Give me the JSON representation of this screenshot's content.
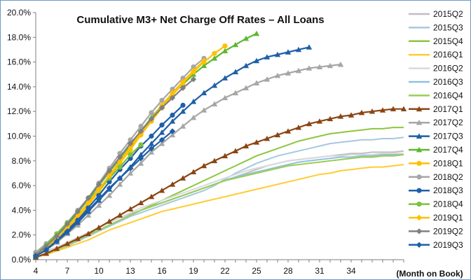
{
  "chart_data": {
    "type": "line",
    "title": "Cumulative M3+ Net Charge Off Rates – All Loans",
    "xlabel": "(Month on Book)",
    "ylabel": "",
    "xlim": [
      4,
      39
    ],
    "ylim": [
      0,
      0.2
    ],
    "x_ticks": [
      4,
      7,
      10,
      13,
      16,
      19,
      22,
      25,
      28,
      31,
      34
    ],
    "y_ticks": [
      {
        "v": 0.0,
        "label": "0.0%"
      },
      {
        "v": 0.02,
        "label": "2.0%"
      },
      {
        "v": 0.04,
        "label": "4.0%"
      },
      {
        "v": 0.06,
        "label": "6.0%"
      },
      {
        "v": 0.08,
        "label": "8.0%"
      },
      {
        "v": 0.1,
        "label": "10.0%"
      },
      {
        "v": 0.12,
        "label": "12.0%"
      },
      {
        "v": 0.14,
        "label": "14.0%"
      },
      {
        "v": 0.16,
        "label": "16.0%"
      },
      {
        "v": 0.18,
        "label": "18.0%"
      },
      {
        "v": 0.2,
        "label": "20.0%"
      }
    ],
    "grid": false,
    "legend_position": "right",
    "series": [
      {
        "name": "2015Q2",
        "color": "#bfbfbf",
        "marker": "none",
        "x_start": 4,
        "values": [
          0.003,
          0.007,
          0.01,
          0.014,
          0.018,
          0.022,
          0.026,
          0.03,
          0.034,
          0.037,
          0.04,
          0.043,
          0.046,
          0.049,
          0.052,
          0.055,
          0.058,
          0.061,
          0.064,
          0.067,
          0.07,
          0.073,
          0.076,
          0.078,
          0.08,
          0.081,
          0.082,
          0.083,
          0.084,
          0.085,
          0.086,
          0.086,
          0.087,
          0.087,
          0.087,
          0.088
        ]
      },
      {
        "name": "2015Q3",
        "color": "#a6c8e0",
        "marker": "none",
        "x_start": 4,
        "values": [
          0.002,
          0.005,
          0.008,
          0.011,
          0.015,
          0.019,
          0.023,
          0.027,
          0.031,
          0.035,
          0.038,
          0.041,
          0.044,
          0.047,
          0.05,
          0.053,
          0.056,
          0.06,
          0.065,
          0.07,
          0.074,
          0.078,
          0.081,
          0.084,
          0.086,
          0.088,
          0.09,
          0.092,
          0.094,
          0.095,
          0.096,
          0.097,
          0.097,
          0.098,
          0.098,
          0.099
        ]
      },
      {
        "name": "2015Q4",
        "color": "#8cc63f",
        "marker": "none",
        "x_start": 4,
        "values": [
          0.002,
          0.005,
          0.008,
          0.012,
          0.016,
          0.02,
          0.024,
          0.028,
          0.032,
          0.036,
          0.04,
          0.044,
          0.048,
          0.052,
          0.056,
          0.06,
          0.064,
          0.068,
          0.072,
          0.076,
          0.08,
          0.084,
          0.087,
          0.09,
          0.093,
          0.096,
          0.098,
          0.1,
          0.102,
          0.103,
          0.104,
          0.105,
          0.106,
          0.106,
          0.107,
          0.107
        ]
      },
      {
        "name": "2016Q1",
        "color": "#ffcc33",
        "marker": "none",
        "x_start": 4,
        "values": [
          0.002,
          0.004,
          0.007,
          0.01,
          0.013,
          0.016,
          0.02,
          0.024,
          0.027,
          0.03,
          0.033,
          0.036,
          0.039,
          0.041,
          0.043,
          0.045,
          0.047,
          0.049,
          0.051,
          0.053,
          0.055,
          0.057,
          0.059,
          0.061,
          0.063,
          0.065,
          0.067,
          0.069,
          0.07,
          0.072,
          0.073,
          0.074,
          0.075,
          0.075,
          0.076,
          0.077
        ]
      },
      {
        "name": "2016Q2",
        "color": "#d9d9d9",
        "marker": "none",
        "x_start": 4,
        "values": [
          0.003,
          0.006,
          0.01,
          0.014,
          0.018,
          0.022,
          0.026,
          0.03,
          0.034,
          0.038,
          0.042,
          0.045,
          0.048,
          0.051,
          0.054,
          0.057,
          0.06,
          0.063,
          0.066,
          0.069,
          0.072,
          0.074,
          0.076,
          0.078,
          0.08,
          0.081,
          0.082,
          0.083,
          0.084,
          0.084,
          0.085,
          0.085,
          0.085,
          0.086,
          0.086,
          0.086
        ]
      },
      {
        "name": "2016Q3",
        "color": "#92c0e0",
        "marker": "none",
        "x_start": 4,
        "values": [
          0.002,
          0.005,
          0.008,
          0.012,
          0.016,
          0.02,
          0.024,
          0.028,
          0.032,
          0.036,
          0.04,
          0.043,
          0.046,
          0.049,
          0.052,
          0.055,
          0.058,
          0.061,
          0.064,
          0.067,
          0.069,
          0.071,
          0.073,
          0.075,
          0.077,
          0.079,
          0.08,
          0.081,
          0.082,
          0.083,
          0.083,
          0.084,
          0.084,
          0.085,
          0.085,
          0.085
        ]
      },
      {
        "name": "2016Q4",
        "color": "#9acd55",
        "marker": "none",
        "x_start": 4,
        "values": [
          0.002,
          0.005,
          0.008,
          0.012,
          0.016,
          0.02,
          0.024,
          0.028,
          0.032,
          0.036,
          0.04,
          0.043,
          0.046,
          0.049,
          0.052,
          0.055,
          0.058,
          0.061,
          0.064,
          0.066,
          0.068,
          0.07,
          0.072,
          0.074,
          0.076,
          0.077,
          0.078,
          0.079,
          0.08,
          0.081,
          0.082,
          0.083,
          0.083,
          0.084,
          0.084,
          0.085
        ]
      },
      {
        "name": "2017Q1",
        "color": "#8b4513",
        "marker": "triangle",
        "x_start": 4,
        "values": [
          0.002,
          0.005,
          0.009,
          0.013,
          0.017,
          0.021,
          0.026,
          0.031,
          0.036,
          0.041,
          0.046,
          0.051,
          0.056,
          0.061,
          0.066,
          0.071,
          0.076,
          0.08,
          0.084,
          0.088,
          0.092,
          0.095,
          0.098,
          0.101,
          0.104,
          0.107,
          0.11,
          0.112,
          0.114,
          0.116,
          0.117,
          0.119,
          0.12,
          0.121,
          0.122,
          0.122
        ]
      },
      {
        "name": "2017Q2",
        "color": "#a6a6a6",
        "marker": "triangle",
        "x_start": 4,
        "values": [
          0.003,
          0.008,
          0.014,
          0.021,
          0.028,
          0.036,
          0.044,
          0.052,
          0.061,
          0.07,
          0.078,
          0.087,
          0.094,
          0.101,
          0.108,
          0.115,
          0.121,
          0.126,
          0.131,
          0.135,
          0.139,
          0.143,
          0.146,
          0.149,
          0.151,
          0.153,
          0.155,
          0.156,
          0.157,
          0.158
        ]
      },
      {
        "name": "2017Q3",
        "color": "#1f5fa8",
        "marker": "triangle",
        "x_start": 4,
        "values": [
          0.003,
          0.008,
          0.015,
          0.022,
          0.03,
          0.039,
          0.048,
          0.057,
          0.066,
          0.075,
          0.085,
          0.094,
          0.103,
          0.112,
          0.12,
          0.128,
          0.135,
          0.141,
          0.147,
          0.152,
          0.157,
          0.161,
          0.164,
          0.166,
          0.168,
          0.17,
          0.172
        ]
      },
      {
        "name": "2017Q4",
        "color": "#5db82e",
        "marker": "triangle",
        "x_start": 4,
        "values": [
          0.004,
          0.011,
          0.019,
          0.028,
          0.038,
          0.049,
          0.06,
          0.071,
          0.082,
          0.093,
          0.104,
          0.115,
          0.125,
          0.134,
          0.142,
          0.15,
          0.157,
          0.163,
          0.169,
          0.174,
          0.179,
          0.183
        ]
      },
      {
        "name": "2018Q1",
        "color": "#ffc000",
        "marker": "circle",
        "x_start": 4,
        "values": [
          0.003,
          0.009,
          0.016,
          0.025,
          0.034,
          0.044,
          0.055,
          0.066,
          0.078,
          0.089,
          0.101,
          0.112,
          0.123,
          0.133,
          0.143,
          0.152,
          0.16,
          0.167,
          0.173
        ]
      },
      {
        "name": "2018Q2",
        "color": "#a6a6a6",
        "marker": "circle",
        "x_start": 4,
        "values": [
          0.006,
          0.013,
          0.021,
          0.03,
          0.04,
          0.05,
          0.062,
          0.074,
          0.086,
          0.097,
          0.108,
          0.119,
          0.129,
          0.138,
          0.147,
          0.156,
          0.163
        ]
      },
      {
        "name": "2018Q3",
        "color": "#1f5fa8",
        "marker": "circle",
        "x_start": 4,
        "values": [
          0.003,
          0.009,
          0.016,
          0.024,
          0.032,
          0.042,
          0.052,
          0.063,
          0.073,
          0.082,
          0.092,
          0.1,
          0.109,
          0.117,
          0.125
        ]
      },
      {
        "name": "2018Q4",
        "color": "#7dc142",
        "marker": "circle",
        "x_start": 4,
        "values": [
          0.004,
          0.012,
          0.021,
          0.03,
          0.039,
          0.048,
          0.057,
          0.066,
          0.075,
          0.085,
          0.093
        ]
      },
      {
        "name": "2019Q1",
        "color": "#ffc000",
        "marker": "diamond",
        "x_start": 4,
        "values": [
          0.004,
          0.01,
          0.017,
          0.026,
          0.036,
          0.046,
          0.057,
          0.068,
          0.08,
          0.091,
          0.103,
          0.114,
          0.125,
          0.135,
          0.144,
          0.153,
          0.161
        ]
      },
      {
        "name": "2019Q2",
        "color": "#808080",
        "marker": "diamond",
        "x_start": 4,
        "values": [
          0.004,
          0.011,
          0.019,
          0.029,
          0.039,
          0.05,
          0.061,
          0.072,
          0.083,
          0.094,
          0.104,
          0.114,
          0.123,
          0.131,
          0.139,
          0.146
        ]
      },
      {
        "name": "2019Q3",
        "color": "#1f5fa8",
        "marker": "diamond",
        "x_start": 4,
        "values": [
          0.003,
          0.008,
          0.015,
          0.023,
          0.031,
          0.04,
          0.049,
          0.058,
          0.066,
          0.074,
          0.082,
          0.09,
          0.097,
          0.104
        ]
      }
    ]
  }
}
